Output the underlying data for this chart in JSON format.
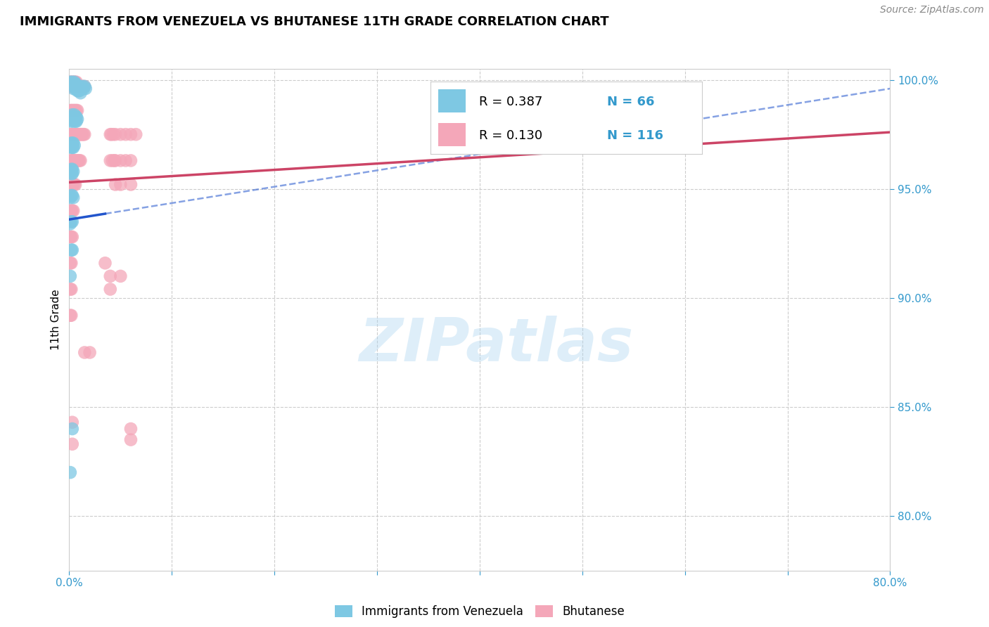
{
  "title": "IMMIGRANTS FROM VENEZUELA VS BHUTANESE 11TH GRADE CORRELATION CHART",
  "source": "Source: ZipAtlas.com",
  "ylabel": "11th Grade",
  "watermark": "ZIPatlas",
  "blue_color": "#7ec8e3",
  "pink_color": "#f4a7b9",
  "trend_blue_color": "#2255cc",
  "trend_pink_color": "#cc4466",
  "legend_blue_R": "R = 0.387",
  "legend_blue_N": "N = 66",
  "legend_pink_R": "R = 0.130",
  "legend_pink_N": "N = 116",
  "xmin": 0.0,
  "xmax": 0.8,
  "ymin": 0.775,
  "ymax": 1.005,
  "yticks": [
    1.0,
    0.95,
    0.9,
    0.85,
    0.8
  ],
  "ytick_labels": [
    "100.0%",
    "95.0%",
    "90.0%",
    "85.0%",
    "80.0%"
  ],
  "xtick_labels_left": "0.0%",
  "xtick_labels_right": "80.0%",
  "blue_trend_x": [
    0.0,
    0.8
  ],
  "blue_trend_y": [
    0.936,
    0.996
  ],
  "pink_trend_x": [
    0.0,
    0.8
  ],
  "pink_trend_y": [
    0.953,
    0.976
  ],
  "blue_scatter": [
    [
      0.001,
      0.999
    ],
    [
      0.002,
      0.998
    ],
    [
      0.003,
      0.999
    ],
    [
      0.004,
      0.998
    ],
    [
      0.004,
      0.996
    ],
    [
      0.005,
      0.999
    ],
    [
      0.005,
      0.997
    ],
    [
      0.006,
      0.998
    ],
    [
      0.006,
      0.996
    ],
    [
      0.007,
      0.998
    ],
    [
      0.007,
      0.996
    ],
    [
      0.008,
      0.997
    ],
    [
      0.008,
      0.995
    ],
    [
      0.009,
      0.997
    ],
    [
      0.009,
      0.995
    ],
    [
      0.01,
      0.997
    ],
    [
      0.01,
      0.995
    ],
    [
      0.011,
      0.996
    ],
    [
      0.011,
      0.994
    ],
    [
      0.012,
      0.996
    ],
    [
      0.013,
      0.997
    ],
    [
      0.014,
      0.996
    ],
    [
      0.015,
      0.997
    ],
    [
      0.016,
      0.996
    ],
    [
      0.001,
      0.982
    ],
    [
      0.002,
      0.983
    ],
    [
      0.002,
      0.981
    ],
    [
      0.003,
      0.984
    ],
    [
      0.003,
      0.982
    ],
    [
      0.004,
      0.983
    ],
    [
      0.004,
      0.981
    ],
    [
      0.005,
      0.984
    ],
    [
      0.005,
      0.982
    ],
    [
      0.006,
      0.983
    ],
    [
      0.006,
      0.981
    ],
    [
      0.007,
      0.983
    ],
    [
      0.007,
      0.981
    ],
    [
      0.008,
      0.982
    ],
    [
      0.001,
      0.97
    ],
    [
      0.002,
      0.971
    ],
    [
      0.002,
      0.969
    ],
    [
      0.003,
      0.971
    ],
    [
      0.003,
      0.969
    ],
    [
      0.004,
      0.971
    ],
    [
      0.004,
      0.969
    ],
    [
      0.005,
      0.97
    ],
    [
      0.001,
      0.958
    ],
    [
      0.002,
      0.959
    ],
    [
      0.002,
      0.957
    ],
    [
      0.003,
      0.959
    ],
    [
      0.003,
      0.957
    ],
    [
      0.004,
      0.958
    ],
    [
      0.001,
      0.946
    ],
    [
      0.002,
      0.947
    ],
    [
      0.003,
      0.947
    ],
    [
      0.004,
      0.946
    ],
    [
      0.001,
      0.934
    ],
    [
      0.002,
      0.935
    ],
    [
      0.003,
      0.935
    ],
    [
      0.002,
      0.922
    ],
    [
      0.003,
      0.922
    ],
    [
      0.001,
      0.91
    ],
    [
      0.003,
      0.84
    ],
    [
      0.001,
      0.82
    ]
  ],
  "pink_scatter": [
    [
      0.001,
      0.999
    ],
    [
      0.002,
      0.999
    ],
    [
      0.003,
      0.999
    ],
    [
      0.004,
      0.999
    ],
    [
      0.005,
      0.999
    ],
    [
      0.006,
      0.999
    ],
    [
      0.007,
      0.999
    ],
    [
      0.001,
      0.997
    ],
    [
      0.002,
      0.997
    ],
    [
      0.003,
      0.997
    ],
    [
      0.004,
      0.997
    ],
    [
      0.005,
      0.997
    ],
    [
      0.006,
      0.997
    ],
    [
      0.007,
      0.997
    ],
    [
      0.008,
      0.997
    ],
    [
      0.009,
      0.997
    ],
    [
      0.01,
      0.997
    ],
    [
      0.011,
      0.997
    ],
    [
      0.012,
      0.997
    ],
    [
      0.013,
      0.997
    ],
    [
      0.014,
      0.997
    ],
    [
      0.015,
      0.997
    ],
    [
      0.001,
      0.986
    ],
    [
      0.002,
      0.986
    ],
    [
      0.003,
      0.986
    ],
    [
      0.004,
      0.986
    ],
    [
      0.005,
      0.986
    ],
    [
      0.006,
      0.986
    ],
    [
      0.007,
      0.986
    ],
    [
      0.008,
      0.986
    ],
    [
      0.001,
      0.975
    ],
    [
      0.002,
      0.975
    ],
    [
      0.003,
      0.975
    ],
    [
      0.004,
      0.975
    ],
    [
      0.005,
      0.975
    ],
    [
      0.006,
      0.975
    ],
    [
      0.007,
      0.975
    ],
    [
      0.008,
      0.975
    ],
    [
      0.009,
      0.975
    ],
    [
      0.01,
      0.975
    ],
    [
      0.011,
      0.975
    ],
    [
      0.012,
      0.975
    ],
    [
      0.013,
      0.975
    ],
    [
      0.014,
      0.975
    ],
    [
      0.015,
      0.975
    ],
    [
      0.001,
      0.963
    ],
    [
      0.002,
      0.963
    ],
    [
      0.003,
      0.963
    ],
    [
      0.004,
      0.963
    ],
    [
      0.005,
      0.963
    ],
    [
      0.006,
      0.963
    ],
    [
      0.007,
      0.963
    ],
    [
      0.008,
      0.963
    ],
    [
      0.009,
      0.963
    ],
    [
      0.01,
      0.963
    ],
    [
      0.011,
      0.963
    ],
    [
      0.001,
      0.952
    ],
    [
      0.002,
      0.952
    ],
    [
      0.003,
      0.952
    ],
    [
      0.004,
      0.952
    ],
    [
      0.005,
      0.952
    ],
    [
      0.006,
      0.952
    ],
    [
      0.001,
      0.94
    ],
    [
      0.002,
      0.94
    ],
    [
      0.003,
      0.94
    ],
    [
      0.004,
      0.94
    ],
    [
      0.001,
      0.928
    ],
    [
      0.002,
      0.928
    ],
    [
      0.003,
      0.928
    ],
    [
      0.001,
      0.916
    ],
    [
      0.002,
      0.916
    ],
    [
      0.001,
      0.904
    ],
    [
      0.002,
      0.904
    ],
    [
      0.001,
      0.892
    ],
    [
      0.002,
      0.892
    ],
    [
      0.04,
      0.975
    ],
    [
      0.04,
      0.963
    ],
    [
      0.041,
      0.975
    ],
    [
      0.042,
      0.963
    ],
    [
      0.043,
      0.975
    ],
    [
      0.044,
      0.963
    ],
    [
      0.045,
      0.975
    ],
    [
      0.045,
      0.963
    ],
    [
      0.045,
      0.952
    ],
    [
      0.05,
      0.975
    ],
    [
      0.05,
      0.963
    ],
    [
      0.05,
      0.952
    ],
    [
      0.055,
      0.975
    ],
    [
      0.055,
      0.963
    ],
    [
      0.06,
      0.975
    ],
    [
      0.06,
      0.963
    ],
    [
      0.065,
      0.975
    ],
    [
      0.04,
      0.91
    ],
    [
      0.04,
      0.904
    ],
    [
      0.05,
      0.91
    ],
    [
      0.035,
      0.916
    ],
    [
      0.06,
      0.952
    ],
    [
      0.015,
      0.875
    ],
    [
      0.02,
      0.875
    ],
    [
      0.003,
      0.843
    ],
    [
      0.003,
      0.833
    ],
    [
      0.06,
      0.835
    ],
    [
      0.06,
      0.84
    ]
  ]
}
